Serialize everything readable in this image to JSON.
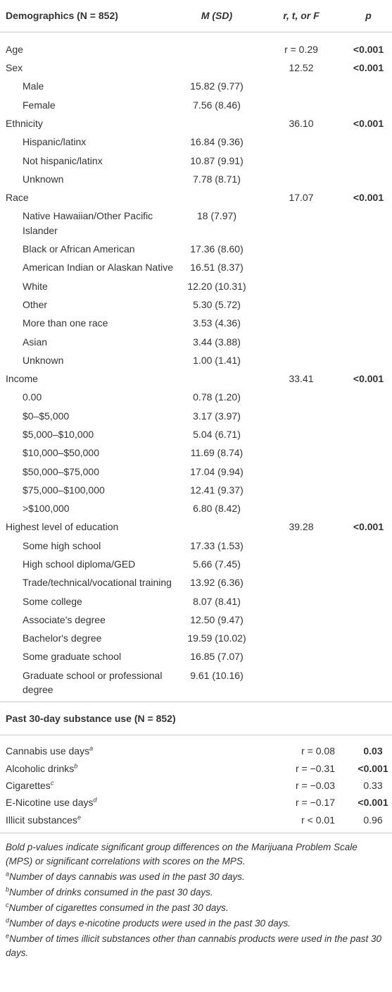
{
  "section1": {
    "header": [
      "Demographics (N = 852)",
      "M (SD)",
      "r, t, or F",
      "p"
    ],
    "groups": [
      {
        "label": "Age",
        "stat": "r = 0.29",
        "p": "<0.001",
        "bold_p": true,
        "items": []
      },
      {
        "label": "Sex",
        "stat": "12.52",
        "p": "<0.001",
        "bold_p": true,
        "items": [
          {
            "label": "Male",
            "m_sd": "15.82 (9.77)"
          },
          {
            "label": "Female",
            "m_sd": "7.56 (8.46)"
          }
        ]
      },
      {
        "label": "Ethnicity",
        "stat": "36.10",
        "p": "<0.001",
        "bold_p": true,
        "items": [
          {
            "label": "Hispanic/latinx",
            "m_sd": "16.84 (9.36)"
          },
          {
            "label": "Not hispanic/latinx",
            "m_sd": "10.87 (9.91)"
          },
          {
            "label": "Unknown",
            "m_sd": "7.78 (8.71)"
          }
        ]
      },
      {
        "label": "Race",
        "stat": "17.07",
        "p": "<0.001",
        "bold_p": true,
        "items": [
          {
            "label": "Native Hawaiian/Other Pacific Islander",
            "m_sd": "18 (7.97)"
          },
          {
            "label": "Black or African American",
            "m_sd": "17.36 (8.60)"
          },
          {
            "label": "American Indian or Alaskan Native",
            "m_sd": "16.51 (8.37)"
          },
          {
            "label": "White",
            "m_sd": "12.20 (10.31)"
          },
          {
            "label": "Other",
            "m_sd": "5.30 (5.72)"
          },
          {
            "label": "More than one race",
            "m_sd": "3.53 (4.36)"
          },
          {
            "label": "Asian",
            "m_sd": "3.44 (3.88)"
          },
          {
            "label": "Unknown",
            "m_sd": "1.00 (1.41)"
          }
        ]
      },
      {
        "label": "Income",
        "stat": "33.41",
        "p": "<0.001",
        "bold_p": true,
        "items": [
          {
            "label": "0.00",
            "m_sd": "0.78 (1.20)"
          },
          {
            "label": "$0–$5,000",
            "m_sd": "3.17 (3.97)"
          },
          {
            "label": "$5,000–$10,000",
            "m_sd": "5.04 (6.71)"
          },
          {
            "label": "$10,000–$50,000",
            "m_sd": "11.69 (8.74)"
          },
          {
            "label": "$50,000–$75,000",
            "m_sd": "17.04 (9.94)"
          },
          {
            "label": "$75,000–$100,000",
            "m_sd": "12.41 (9.37)"
          },
          {
            "label": ">$100,000",
            "m_sd": "6.80 (8.42)"
          }
        ]
      },
      {
        "label": "Highest level of education",
        "stat": "39.28",
        "p": "<0.001",
        "bold_p": true,
        "items": [
          {
            "label": "Some high school",
            "m_sd": "17.33 (1.53)"
          },
          {
            "label": "High school diploma/GED",
            "m_sd": "5.66 (7.45)"
          },
          {
            "label": "Trade/technical/vocational training",
            "m_sd": "13.92 (6.36)"
          },
          {
            "label": "Some college",
            "m_sd": "8.07 (8.41)"
          },
          {
            "label": "Associate's degree",
            "m_sd": "12.50 (9.47)"
          },
          {
            "label": "Bachelor's degree",
            "m_sd": "19.59 (10.02)"
          },
          {
            "label": "Some graduate school",
            "m_sd": "16.85 (7.07)"
          },
          {
            "label": "Graduate school or professional degree",
            "m_sd": "9.61 (10.16)"
          }
        ]
      }
    ]
  },
  "section2": {
    "title": "Past 30-day substance use (N = 852)",
    "rows": [
      {
        "label": "Cannabis use days",
        "note": "a",
        "stat": "r = 0.08",
        "p": "0.03",
        "bold_p": true
      },
      {
        "label": "Alcoholic drinks",
        "note": "b",
        "stat": "r = −0.31",
        "p": "<0.001",
        "bold_p": true
      },
      {
        "label": "Cigarettes",
        "note": "c",
        "stat": "r = −0.03",
        "p": "0.33",
        "bold_p": false
      },
      {
        "label": "E-Nicotine use days",
        "note": "d",
        "stat": "r = −0.17",
        "p": "<0.001",
        "bold_p": true
      },
      {
        "label": "Illicit substances",
        "note": "e",
        "stat": "r < 0.01",
        "p": "0.96",
        "bold_p": false
      }
    ]
  },
  "footnote": {
    "text": "Bold p-values indicate significant group differences on the Marijuana Problem Scale (MPS) or significant correlations with scores on the MPS.",
    "notes": [
      {
        "mark": "a",
        "text": "Number of days cannabis was used in the past 30 days."
      },
      {
        "mark": "b",
        "text": "Number of drinks consumed in the past 30 days."
      },
      {
        "mark": "c",
        "text": "Number of cigarettes consumed in the past 30 days."
      },
      {
        "mark": "d",
        "text": "Number of days e-nicotine products were used in the past 30 days."
      },
      {
        "mark": "e",
        "text": "Number of times illicit substances other than cannabis products were used in the past 30 days."
      }
    ]
  }
}
